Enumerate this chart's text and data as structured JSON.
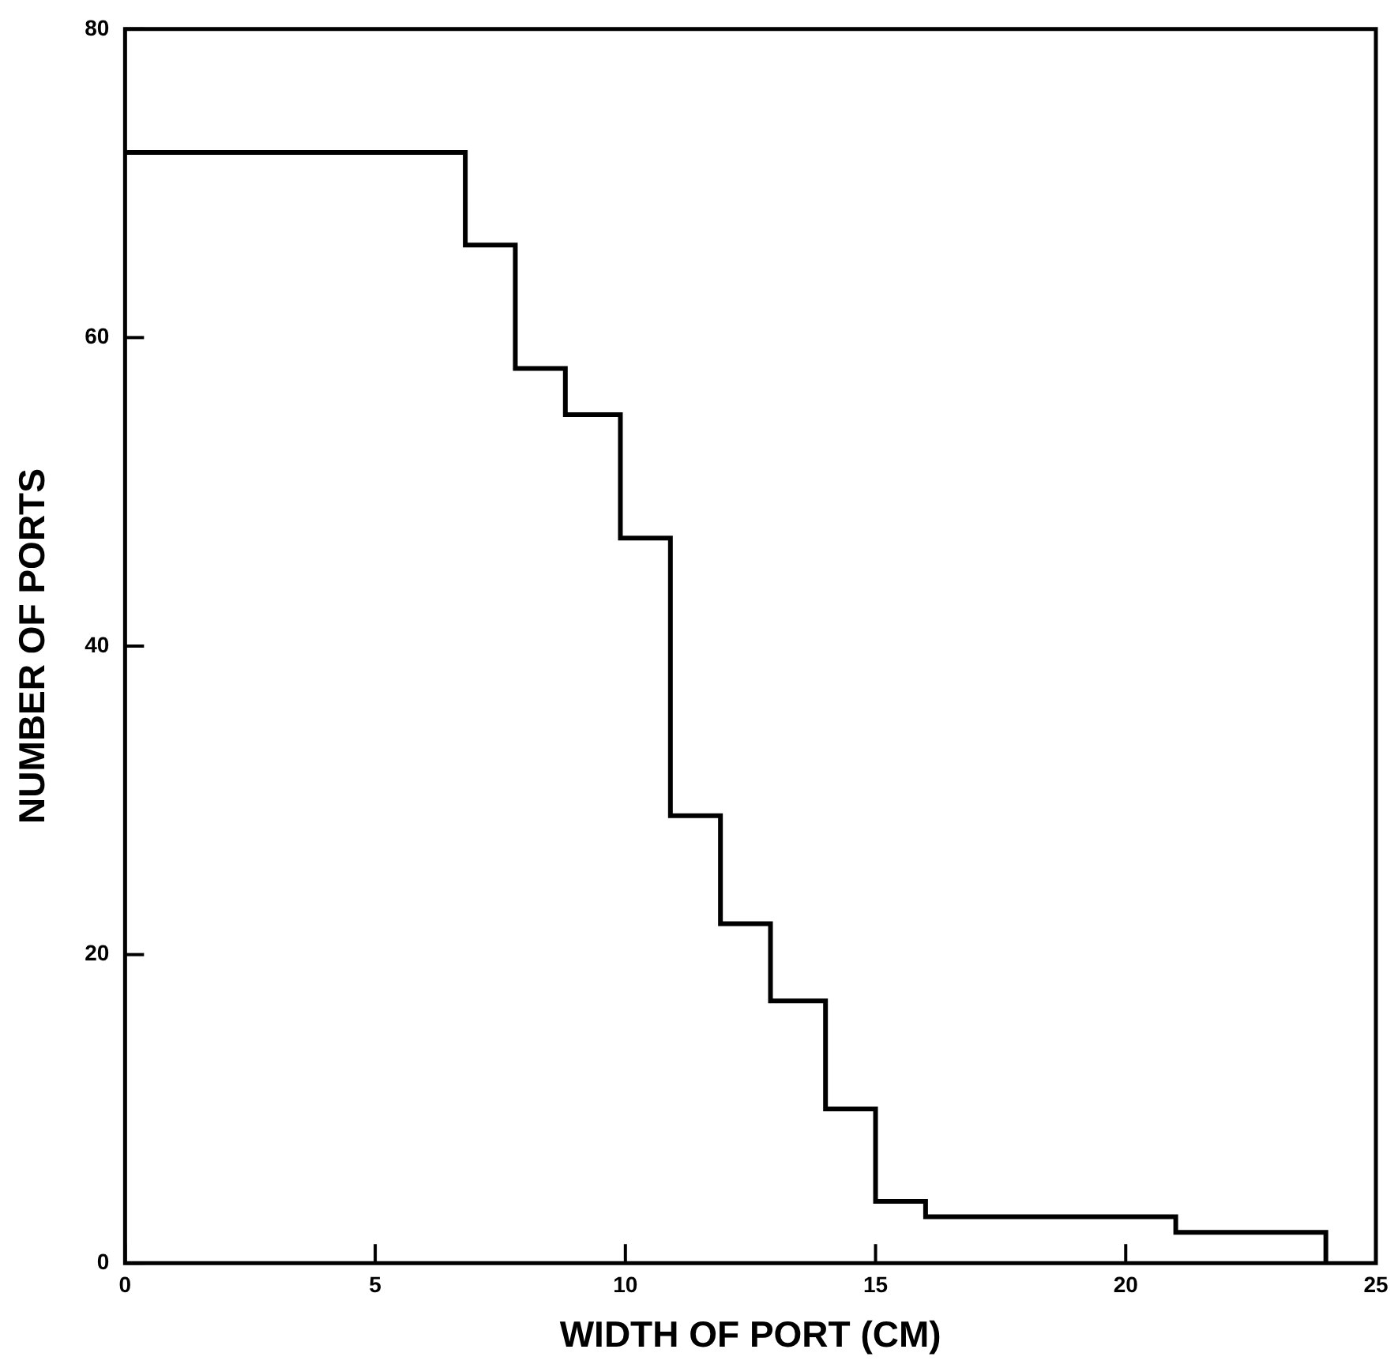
{
  "chart_data": {
    "type": "histogram",
    "xlabel": "WIDTH OF PORT (CM)",
    "ylabel": "NUMBER OF PORTS",
    "bins": [
      0,
      6.8,
      7.8,
      8.8,
      9.9,
      10.9,
      11.9,
      12.9,
      14,
      15,
      16,
      21,
      24
    ],
    "values": [
      72,
      66,
      58,
      55,
      47,
      29,
      22,
      17,
      10,
      4,
      3,
      2
    ],
    "color": "#000000",
    "xlim": [
      0,
      25
    ],
    "xticks": [
      0,
      5,
      10,
      15,
      20,
      25
    ],
    "ylim": [
      0,
      80
    ],
    "yticks": [
      0,
      20,
      40,
      60,
      80
    ],
    "grid": false,
    "legend": false
  }
}
